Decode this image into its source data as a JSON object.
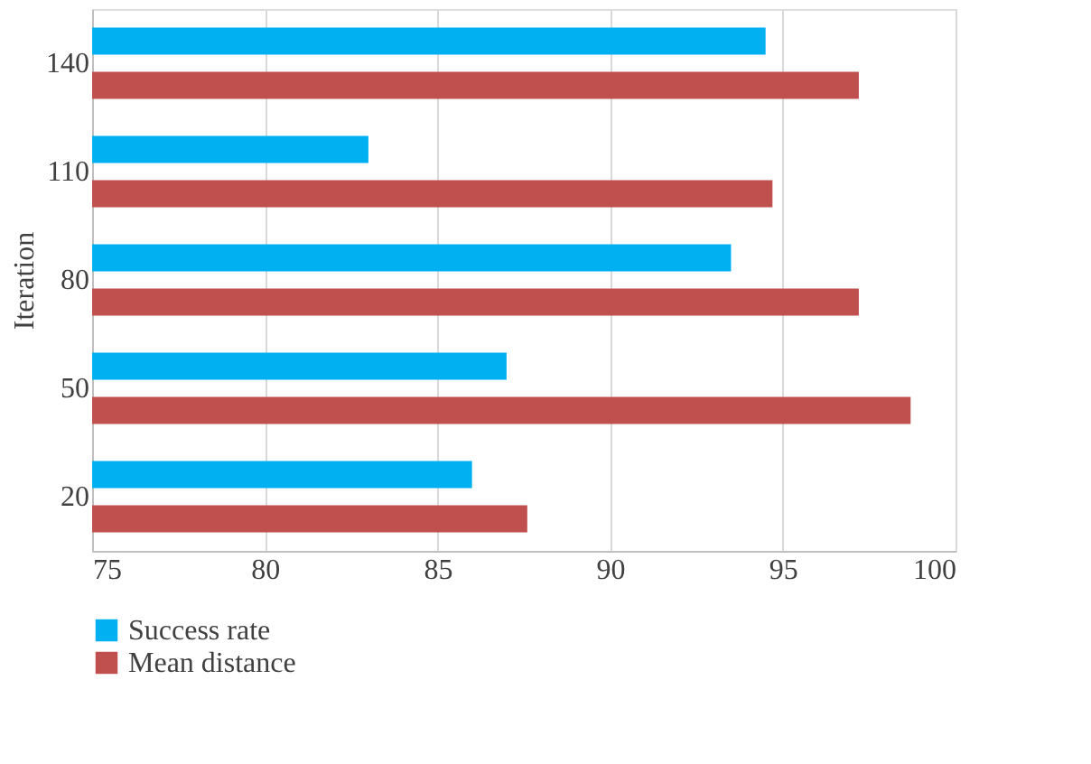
{
  "chart_data": {
    "type": "bar",
    "orientation": "horizontal",
    "ylabel": "Iteration",
    "categories": [
      "140",
      "110",
      "80",
      "50",
      "20"
    ],
    "series": [
      {
        "name": "Success rate",
        "color": "#00b0f0",
        "values": [
          94.5,
          83.0,
          93.5,
          87.0,
          86.0
        ]
      },
      {
        "name": "Mean distance",
        "color": "#c0504d",
        "values": [
          97.2,
          94.7,
          97.2,
          98.7,
          87.6
        ]
      }
    ],
    "xlim": [
      75,
      100
    ],
    "xticks": [
      75,
      80,
      85,
      90,
      95,
      100
    ],
    "grid": "x",
    "legend": "bottom"
  }
}
